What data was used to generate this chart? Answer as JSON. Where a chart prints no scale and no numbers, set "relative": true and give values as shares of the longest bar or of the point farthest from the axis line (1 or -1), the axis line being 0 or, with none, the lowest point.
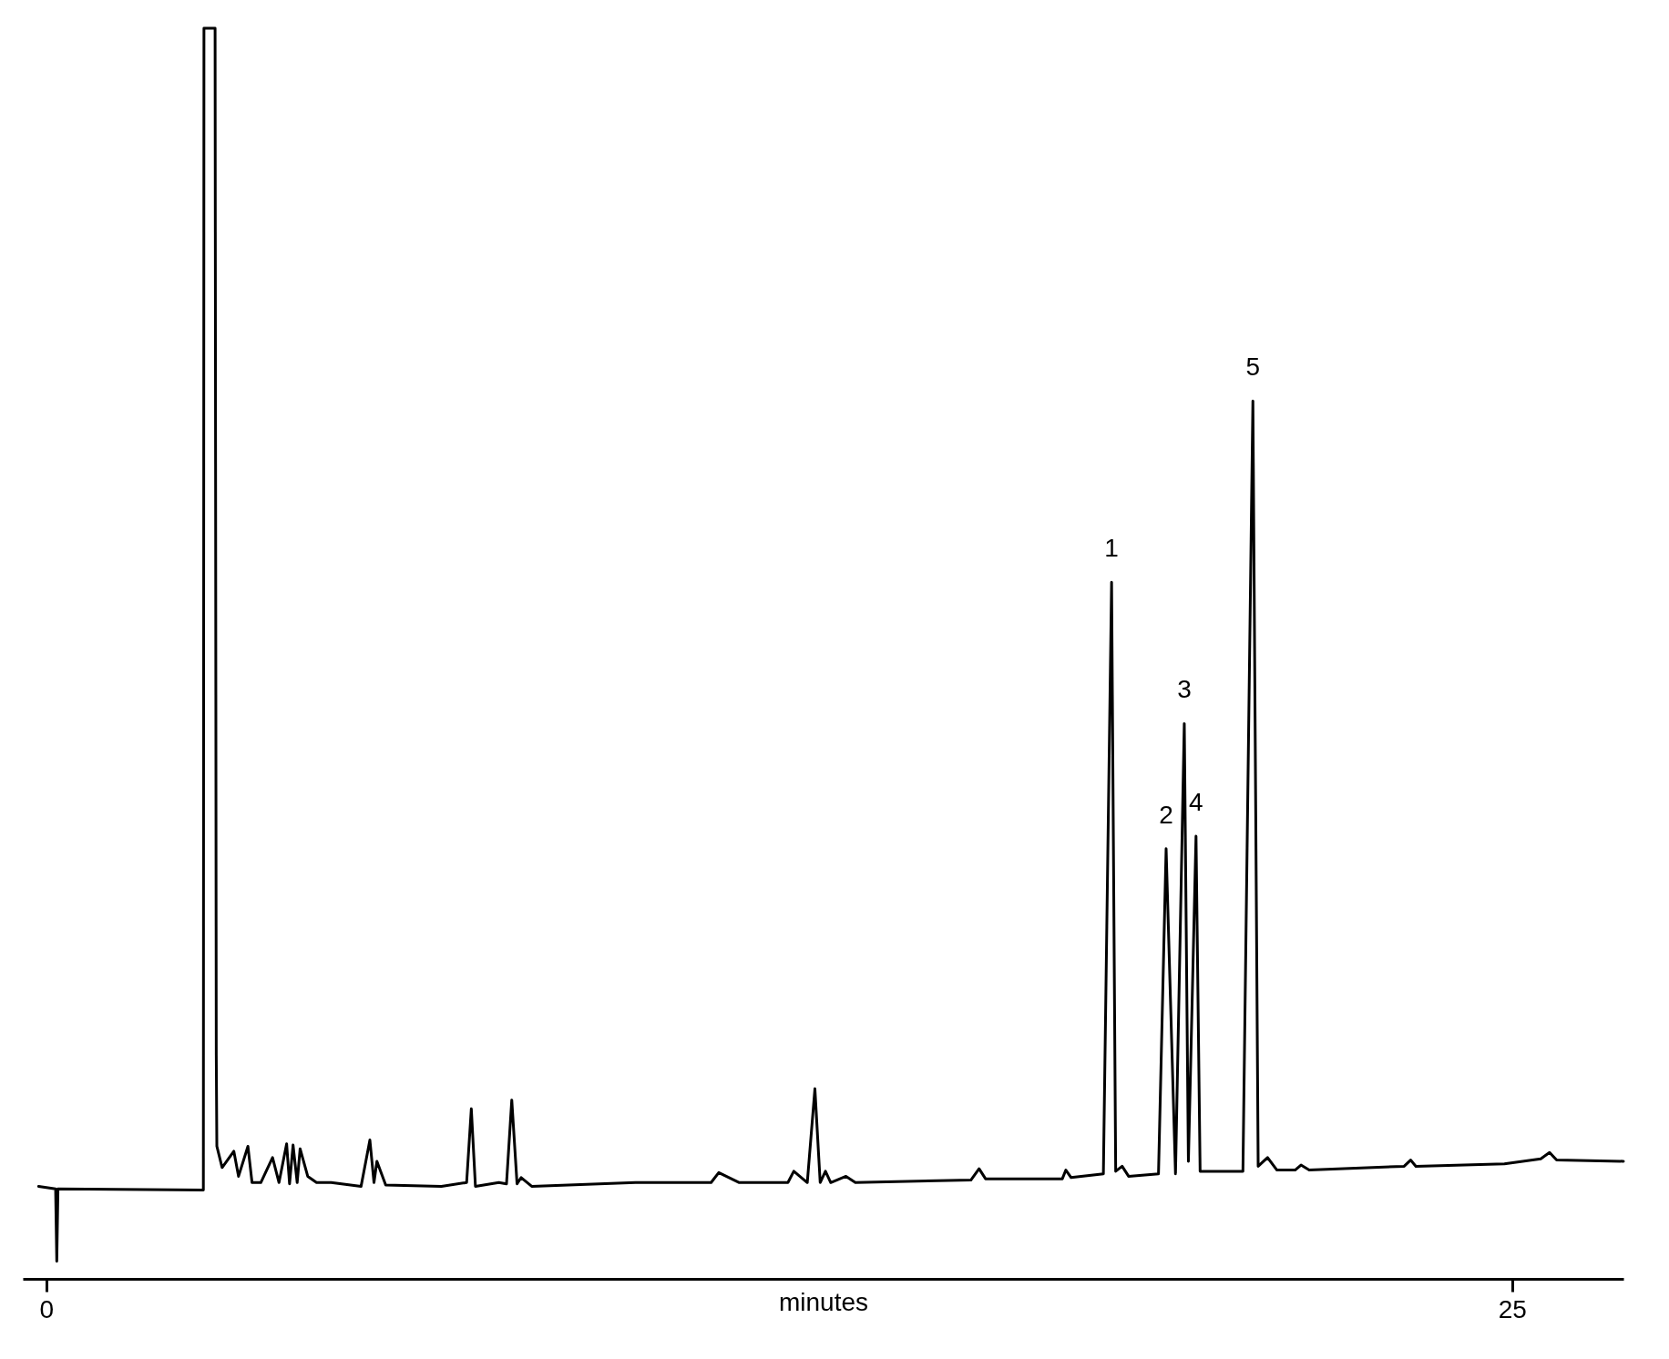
{
  "chart_data": {
    "type": "line",
    "xlabel": "minutes",
    "relative": true,
    "color": "#000000",
    "xlim": [
      -0.4,
      26.9
    ],
    "xticks": [
      0,
      25
    ],
    "x": [
      -0.13,
      0.16,
      0.18,
      0.2,
      2.68,
      2.69,
      2.88,
      2.9,
      2.91,
      3.0,
      3.2,
      3.28,
      3.44,
      3.51,
      3.66,
      3.86,
      3.97,
      4.1,
      4.15,
      4.21,
      4.28,
      4.33,
      4.46,
      4.61,
      4.86,
      5.37,
      5.52,
      5.59,
      5.64,
      5.79,
      6.74,
      7.17,
      7.25,
      7.32,
      7.72,
      7.85,
      7.94,
      8.03,
      8.1,
      8.28,
      10.05,
      11.34,
      11.47,
      11.82,
      12.65,
      12.75,
      12.98,
      13.11,
      13.2,
      13.29,
      13.38,
      13.64,
      13.8,
      15.77,
      15.91,
      16.02,
      17.33,
      17.39,
      17.48,
      18.03,
      18.17,
      18.24,
      18.35,
      18.46,
      18.97,
      19.1,
      19.26,
      19.41,
      19.48,
      19.61,
      19.68,
      20.41,
      20.58,
      20.67,
      20.83,
      20.99,
      21.3,
      21.4,
      21.54,
      23.16,
      23.27,
      23.36,
      24.87,
      25.49,
      25.64,
      25.76,
      26.9
    ],
    "values": [
      0.074,
      0.072,
      0.014,
      0.072,
      0.071,
      1.0,
      1.0,
      0.179,
      0.106,
      0.089,
      0.102,
      0.082,
      0.106,
      0.077,
      0.077,
      0.097,
      0.077,
      0.108,
      0.076,
      0.107,
      0.077,
      0.104,
      0.082,
      0.077,
      0.077,
      0.074,
      0.111,
      0.077,
      0.094,
      0.075,
      0.074,
      0.077,
      0.136,
      0.074,
      0.077,
      0.076,
      0.143,
      0.076,
      0.081,
      0.074,
      0.077,
      0.077,
      0.085,
      0.077,
      0.077,
      0.086,
      0.077,
      0.152,
      0.077,
      0.086,
      0.077,
      0.082,
      0.077,
      0.079,
      0.088,
      0.08,
      0.08,
      0.087,
      0.081,
      0.084,
      0.557,
      0.086,
      0.09,
      0.082,
      0.084,
      0.344,
      0.084,
      0.444,
      0.094,
      0.354,
      0.086,
      0.086,
      0.702,
      0.09,
      0.097,
      0.087,
      0.087,
      0.091,
      0.087,
      0.09,
      0.095,
      0.09,
      0.092,
      0.096,
      0.101,
      0.095,
      0.094
    ],
    "annotations": [
      {
        "text": "1",
        "x": 18.17,
        "y": 0.557
      },
      {
        "text": "2",
        "x": 19.1,
        "y": 0.344
      },
      {
        "text": "3",
        "x": 19.41,
        "y": 0.444
      },
      {
        "text": "4",
        "x": 19.61,
        "y": 0.354
      },
      {
        "text": "5",
        "x": 20.58,
        "y": 0.702
      }
    ]
  }
}
